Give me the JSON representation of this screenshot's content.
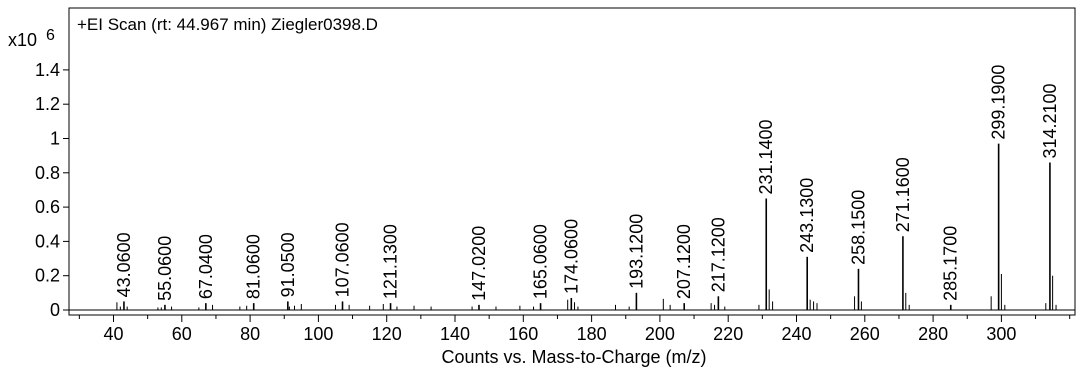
{
  "chart_data": {
    "type": "bar",
    "title": "+EI Scan (rt: 44.967 min) Ziegler0398.D",
    "xlabel": "Counts vs. Mass-to-Charge (m/z)",
    "ylabel": "",
    "y_exponent_label": "x10",
    "y_exponent_value": "6",
    "xlim": [
      30,
      320
    ],
    "ylim": [
      0,
      1.6
    ],
    "x_ticks": [
      40,
      60,
      80,
      100,
      120,
      140,
      160,
      180,
      200,
      220,
      240,
      260,
      280,
      300
    ],
    "x_tick_labels": [
      "40",
      "60",
      "80",
      "100",
      "120",
      "140",
      "160",
      "180",
      "200",
      "220",
      "240",
      "260",
      "280",
      "300"
    ],
    "y_ticks": [
      0,
      0.2,
      0.4,
      0.6,
      0.8,
      1.0,
      1.2,
      1.4
    ],
    "y_tick_labels": [
      "0",
      "0.2",
      "0.4",
      "0.6",
      "0.8",
      "1",
      "1.2",
      "1.4"
    ],
    "labeled_peaks": [
      {
        "mz": 43.06,
        "intensity": 0.05,
        "label": "43.0600"
      },
      {
        "mz": 55.06,
        "intensity": 0.03,
        "label": "55.0600"
      },
      {
        "mz": 67.04,
        "intensity": 0.04,
        "label": "67.0400"
      },
      {
        "mz": 81.06,
        "intensity": 0.04,
        "label": "81.0600"
      },
      {
        "mz": 91.05,
        "intensity": 0.05,
        "label": "91.0500"
      },
      {
        "mz": 107.06,
        "intensity": 0.05,
        "label": "107.0600"
      },
      {
        "mz": 121.13,
        "intensity": 0.04,
        "label": "121.1300"
      },
      {
        "mz": 147.02,
        "intensity": 0.03,
        "label": "147.0200"
      },
      {
        "mz": 165.06,
        "intensity": 0.04,
        "label": "165.0600"
      },
      {
        "mz": 174.06,
        "intensity": 0.07,
        "label": "174.0600"
      },
      {
        "mz": 193.12,
        "intensity": 0.1,
        "label": "193.1200"
      },
      {
        "mz": 207.12,
        "intensity": 0.04,
        "label": "207.1200"
      },
      {
        "mz": 217.12,
        "intensity": 0.08,
        "label": "217.1200"
      },
      {
        "mz": 231.14,
        "intensity": 0.65,
        "label": "231.1400"
      },
      {
        "mz": 243.13,
        "intensity": 0.31,
        "label": "243.1300"
      },
      {
        "mz": 258.15,
        "intensity": 0.24,
        "label": "258.1500"
      },
      {
        "mz": 271.16,
        "intensity": 0.43,
        "label": "271.1600"
      },
      {
        "mz": 285.17,
        "intensity": 0.03,
        "label": "285.1700"
      },
      {
        "mz": 299.19,
        "intensity": 0.97,
        "label": "299.1900"
      },
      {
        "mz": 314.21,
        "intensity": 0.86,
        "label": "314.2100"
      }
    ],
    "other_peaks": [
      [
        41.0,
        0.045
      ],
      [
        42.0,
        0.02
      ],
      [
        44.0,
        0.02
      ],
      [
        53.0,
        0.015
      ],
      [
        54.0,
        0.015
      ],
      [
        57.0,
        0.02
      ],
      [
        65.0,
        0.015
      ],
      [
        69.0,
        0.03
      ],
      [
        77.0,
        0.02
      ],
      [
        79.0,
        0.025
      ],
      [
        91.5,
        0.02
      ],
      [
        93.0,
        0.025
      ],
      [
        95.0,
        0.035
      ],
      [
        105.0,
        0.03
      ],
      [
        109.0,
        0.03
      ],
      [
        115.0,
        0.025
      ],
      [
        119.0,
        0.035
      ],
      [
        123.0,
        0.02
      ],
      [
        128.0,
        0.025
      ],
      [
        133.0,
        0.02
      ],
      [
        145.0,
        0.02
      ],
      [
        152.0,
        0.02
      ],
      [
        159.0,
        0.025
      ],
      [
        163.0,
        0.02
      ],
      [
        173.0,
        0.06
      ],
      [
        175.0,
        0.045
      ],
      [
        176.0,
        0.02
      ],
      [
        187.0,
        0.03
      ],
      [
        191.0,
        0.02
      ],
      [
        201.0,
        0.065
      ],
      [
        203.0,
        0.03
      ],
      [
        215.0,
        0.04
      ],
      [
        216.0,
        0.03
      ],
      [
        219.0,
        0.02
      ],
      [
        229.0,
        0.03
      ],
      [
        232.0,
        0.12
      ],
      [
        233.0,
        0.05
      ],
      [
        244.0,
        0.06
      ],
      [
        245.0,
        0.05
      ],
      [
        246.0,
        0.04
      ],
      [
        257.0,
        0.08
      ],
      [
        259.0,
        0.05
      ],
      [
        272.0,
        0.1
      ],
      [
        273.0,
        0.03
      ],
      [
        297.0,
        0.08
      ],
      [
        300.0,
        0.21
      ],
      [
        301.0,
        0.03
      ],
      [
        313.0,
        0.04
      ],
      [
        315.0,
        0.2
      ],
      [
        316.0,
        0.03
      ]
    ],
    "grid": false,
    "legend": "none"
  }
}
